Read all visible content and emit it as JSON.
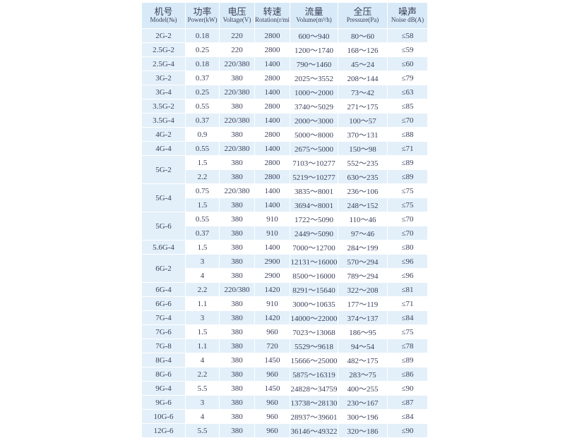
{
  "table": {
    "header": [
      {
        "zh": "机号",
        "en": "Model(№)"
      },
      {
        "zh": "功率",
        "en": "Power(kW)"
      },
      {
        "zh": "电压",
        "en": "Voltage(V)"
      },
      {
        "zh": "转速",
        "en": "Rotation(r/min)"
      },
      {
        "zh": "流量",
        "en": "Volume(m³/h)"
      },
      {
        "zh": "全压",
        "en": "Pressure(Pa)"
      },
      {
        "zh": "噪声",
        "en": "Noise dB(A)"
      }
    ],
    "groups": [
      {
        "model": "2G-2",
        "rows": [
          [
            "0.18",
            "220",
            "2800",
            "600～940",
            "80～60",
            "≤58"
          ]
        ]
      },
      {
        "model": "2.5G-2",
        "rows": [
          [
            "0.25",
            "220",
            "2800",
            "1200～1740",
            "168～126",
            "≤59"
          ]
        ]
      },
      {
        "model": "2.5G-4",
        "rows": [
          [
            "0.18",
            "220/380",
            "1400",
            "790～1460",
            "45～24",
            "≤60"
          ]
        ]
      },
      {
        "model": "3G-2",
        "rows": [
          [
            "0.37",
            "380",
            "2800",
            "2025～3552",
            "208～144",
            "≤79"
          ]
        ]
      },
      {
        "model": "3G-4",
        "rows": [
          [
            "0.25",
            "220/380",
            "1400",
            "1000～2000",
            "73～42",
            "≤63"
          ]
        ]
      },
      {
        "model": "3.5G-2",
        "rows": [
          [
            "0.55",
            "380",
            "2800",
            "3740～5029",
            "271～175",
            "≤85"
          ]
        ]
      },
      {
        "model": "3.5G-4",
        "rows": [
          [
            "0.37",
            "220/380",
            "1400",
            "2000～3000",
            "100～57",
            "≤70"
          ]
        ]
      },
      {
        "model": "4G-2",
        "rows": [
          [
            "0.9",
            "380",
            "2800",
            "5000～8000",
            "370～131",
            "≤88"
          ]
        ]
      },
      {
        "model": "4G-4",
        "rows": [
          [
            "0.55",
            "220/380",
            "1400",
            "2675～5000",
            "150～98",
            "≤71"
          ]
        ]
      },
      {
        "model": "5G-2",
        "rows": [
          [
            "1.5",
            "380",
            "2800",
            "7103～10277",
            "552～235",
            "≤89"
          ],
          [
            "2.2",
            "380",
            "2800",
            "5219～10277",
            "630～235",
            "≤89"
          ]
        ]
      },
      {
        "model": "5G-4",
        "rows": [
          [
            "0.75",
            "220/380",
            "1400",
            "3835～8001",
            "236～106",
            "≤75"
          ],
          [
            "1.5",
            "380",
            "1400",
            "3694～8001",
            "248～152",
            "≤75"
          ]
        ]
      },
      {
        "model": "5G-6",
        "rows": [
          [
            "0.55",
            "380",
            "910",
            "1722～5090",
            "110～46",
            "≤70"
          ],
          [
            "0.37",
            "380",
            "910",
            "2449～5090",
            "97～46",
            "≤70"
          ]
        ]
      },
      {
        "model": "5.6G-4",
        "rows": [
          [
            "1.5",
            "380",
            "1400",
            "7000～12700",
            "284～199",
            "≤80"
          ]
        ]
      },
      {
        "model": "6G-2",
        "rows": [
          [
            "3",
            "380",
            "2900",
            "12131～16000",
            "570～294",
            "≤96"
          ],
          [
            "4",
            "380",
            "2900",
            "8500～16000",
            "789～294",
            "≤96"
          ]
        ]
      },
      {
        "model": "6G-4",
        "rows": [
          [
            "2.2",
            "220/380",
            "1420",
            "8291～15640",
            "322～208",
            "≤81"
          ]
        ]
      },
      {
        "model": "6G-6",
        "rows": [
          [
            "1.1",
            "380",
            "910",
            "3000～10635",
            "177～119",
            "≤71"
          ]
        ]
      },
      {
        "model": "7G-4",
        "rows": [
          [
            "3",
            "380",
            "1420",
            "14000～22000",
            "374～137",
            "≤84"
          ]
        ]
      },
      {
        "model": "7G-6",
        "rows": [
          [
            "1.5",
            "380",
            "960",
            "7023～13068",
            "186～95",
            "≤75"
          ]
        ]
      },
      {
        "model": "7G-8",
        "rows": [
          [
            "1.1",
            "380",
            "720",
            "5529～9618",
            "94～54",
            "≤78"
          ]
        ]
      },
      {
        "model": "8G-4",
        "rows": [
          [
            "4",
            "380",
            "1450",
            "15666～25000",
            "482～175",
            "≤89"
          ]
        ]
      },
      {
        "model": "8G-6",
        "rows": [
          [
            "2.2",
            "380",
            "960",
            "5875～16319",
            "283～75",
            "≤86"
          ]
        ]
      },
      {
        "model": "9G-4",
        "rows": [
          [
            "5.5",
            "380",
            "1450",
            "24828～34759",
            "400～255",
            "≤90"
          ]
        ]
      },
      {
        "model": "9G-6",
        "rows": [
          [
            "3",
            "380",
            "960",
            "13738～28130",
            "230～167",
            "≤87"
          ]
        ]
      },
      {
        "model": "10G-6",
        "rows": [
          [
            "4",
            "380",
            "960",
            "28937～39601",
            "300～196",
            "≤84"
          ]
        ]
      },
      {
        "model": "12G-6",
        "rows": [
          [
            "5.5",
            "380",
            "960",
            "36146～49322",
            "320～186",
            "≤90"
          ]
        ]
      }
    ]
  }
}
